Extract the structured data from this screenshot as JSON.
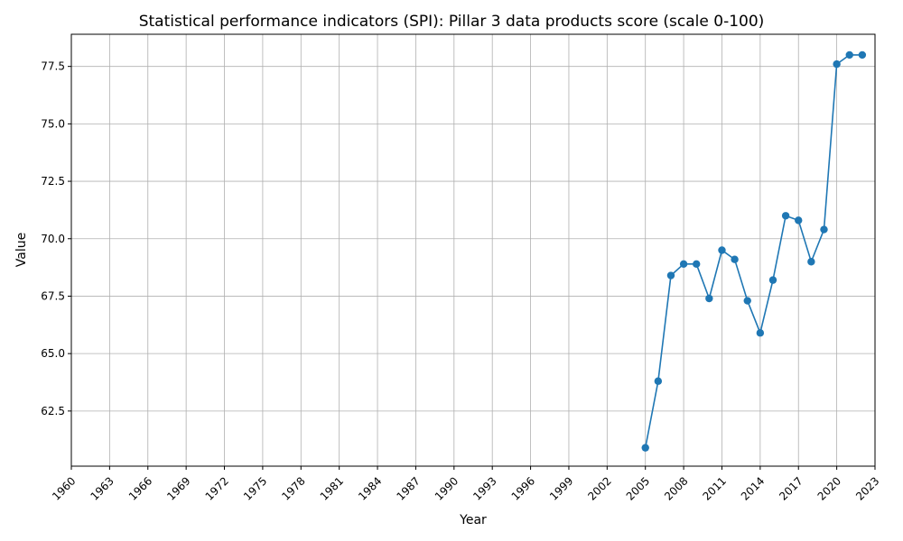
{
  "chart_data": {
    "type": "line",
    "title": "Statistical performance indicators (SPI): Pillar 3 data products score  (scale 0-100)",
    "xlabel": "Year",
    "ylabel": "Value",
    "xlim": [
      1960,
      2023
    ],
    "ylim": [
      60.1,
      78.9
    ],
    "x_ticks": [
      "1960",
      "1963",
      "1966",
      "1969",
      "1972",
      "1975",
      "1978",
      "1981",
      "1984",
      "1987",
      "1990",
      "1993",
      "1996",
      "1999",
      "2002",
      "2005",
      "2008",
      "2011",
      "2014",
      "2017",
      "2020",
      "2023"
    ],
    "y_ticks": [
      "62.5",
      "65.0",
      "67.5",
      "70.0",
      "72.5",
      "75.0",
      "77.5"
    ],
    "grid": true,
    "color": "#1f77b4",
    "series": [
      {
        "x": [
          2005,
          2006,
          2007,
          2008,
          2009,
          2010,
          2011,
          2012,
          2013,
          2014,
          2015,
          2016,
          2017,
          2018,
          2019,
          2020,
          2021,
          2022
        ],
        "values": [
          60.9,
          63.8,
          68.4,
          68.9,
          68.9,
          67.4,
          69.5,
          69.1,
          67.3,
          65.9,
          68.2,
          71.0,
          70.8,
          69.0,
          70.4,
          77.6,
          78.0,
          78.0
        ]
      }
    ]
  }
}
